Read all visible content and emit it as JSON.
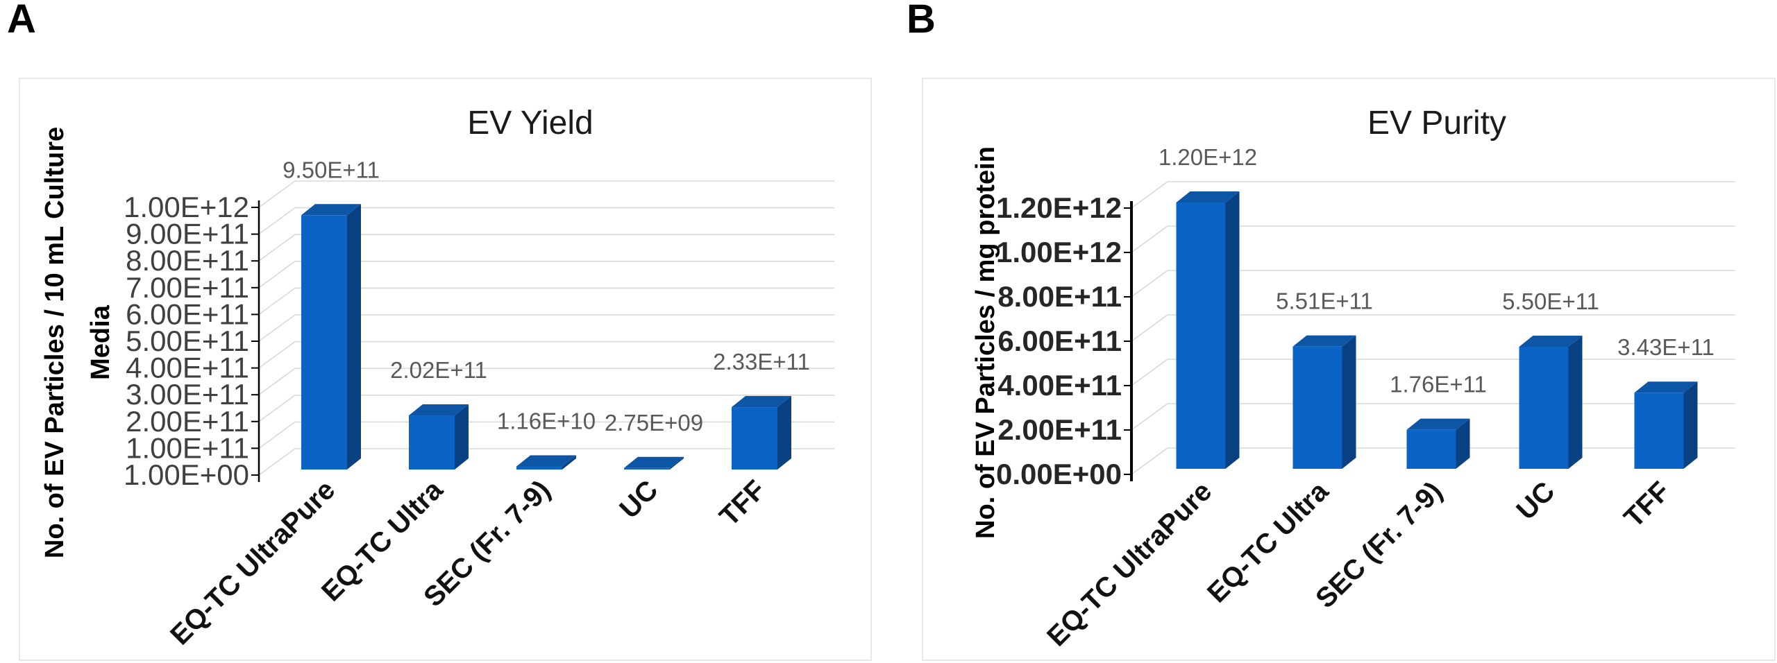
{
  "colors": {
    "bar_front": "#0b63c5",
    "bar_side": "#0a4183",
    "bar_top": "#0d55a5",
    "grid": "#d9d9d9",
    "axis": "#000000",
    "value_label": "#595959",
    "category_label": "#111111",
    "tick_label_a": "#404040",
    "tick_label_b": "#262626"
  },
  "chart_data": [
    {
      "type": "bar",
      "style": "3d-column",
      "panel_label": "A",
      "title": "EV Yield",
      "ylabel": "No. of  EV Particles / 10 mL Culture Media",
      "y_axis_title_lines": [
        "No. of  EV Particles / 10 mL Culture",
        "Media"
      ],
      "categories": [
        "EQ-TC UltraPure",
        "EQ-TC Ultra",
        "SEC (Fr. 7-9)",
        "UC",
        "TFF"
      ],
      "values": [
        950000000000,
        202000000000,
        11600000000,
        2750000000,
        233000000000
      ],
      "value_labels": [
        "9.50E+11",
        "2.02E+11",
        "1.16E+10",
        "2.75E+09",
        "2.33E+11"
      ],
      "y_tick_labels": [
        "1.00E+12",
        "9.00E+11",
        "8.00E+11",
        "7.00E+11",
        "6.00E+11",
        "5.00E+11",
        "4.00E+11",
        "3.00E+11",
        "2.00E+11",
        "1.00E+11",
        "1.00E+00"
      ],
      "ylim": [
        1,
        1000000000000
      ],
      "grid": true,
      "legend": false
    },
    {
      "type": "bar",
      "style": "3d-column",
      "panel_label": "B",
      "title": "EV Purity",
      "ylabel": "No. of  EV Particles / mg protein",
      "y_axis_title_lines": [
        "No. of  EV Particles / mg protein"
      ],
      "categories": [
        "EQ-TC UltraPure",
        "EQ-TC Ultra",
        "SEC (Fr. 7-9)",
        "UC",
        "TFF"
      ],
      "values": [
        1200000000000,
        551000000000,
        176000000000,
        550000000000,
        343000000000
      ],
      "value_labels": [
        "1.20E+12",
        "5.51E+11",
        "1.76E+11",
        "5.50E+11",
        "3.43E+11"
      ],
      "y_tick_labels": [
        "1.20E+12",
        "1.00E+12",
        "8.00E+11",
        "6.00E+11",
        "4.00E+11",
        "2.00E+11",
        "0.00E+00"
      ],
      "ylim": [
        0,
        1200000000000
      ],
      "grid": true,
      "legend": false
    }
  ]
}
